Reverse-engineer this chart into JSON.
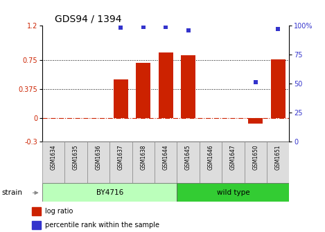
{
  "title": "GDS94 / 1394",
  "samples": [
    "GSM1634",
    "GSM1635",
    "GSM1636",
    "GSM1637",
    "GSM1638",
    "GSM1644",
    "GSM1645",
    "GSM1646",
    "GSM1647",
    "GSM1650",
    "GSM1651"
  ],
  "log_ratio": [
    0,
    0,
    0,
    0.5,
    0.72,
    0.85,
    0.82,
    0,
    0,
    -0.07,
    0.76
  ],
  "percentile_rank": [
    null,
    null,
    null,
    98,
    99,
    99,
    96,
    null,
    null,
    51,
    97
  ],
  "ylim_left": [
    -0.3,
    1.2
  ],
  "ylim_right": [
    0,
    100
  ],
  "yticks_left": [
    -0.3,
    0,
    0.375,
    0.75,
    1.2
  ],
  "ytick_labels_left": [
    "-0.3",
    "0",
    "0.375",
    "0.75",
    "1.2"
  ],
  "yticks_right": [
    0,
    25,
    50,
    75,
    100
  ],
  "ytick_labels_right": [
    "0",
    "25",
    "50",
    "75",
    "100%"
  ],
  "hlines": [
    0.375,
    0.75
  ],
  "bar_color": "#cc2200",
  "dot_color": "#3333cc",
  "by4716_indices": [
    0,
    1,
    2,
    3,
    4,
    5
  ],
  "wild_type_indices": [
    6,
    7,
    8,
    9,
    10
  ],
  "by4716_color": "#bbffbb",
  "wild_type_color": "#33cc33",
  "strain_label": "strain",
  "by4716_label": "BY4716",
  "wild_type_label": "wild type",
  "legend_log_ratio": "log ratio",
  "legend_percentile": "percentile rank within the sample",
  "title_fontsize": 10,
  "tick_fontsize": 7,
  "sample_fontsize": 5.5,
  "strain_fontsize": 7.5,
  "legend_fontsize": 7
}
